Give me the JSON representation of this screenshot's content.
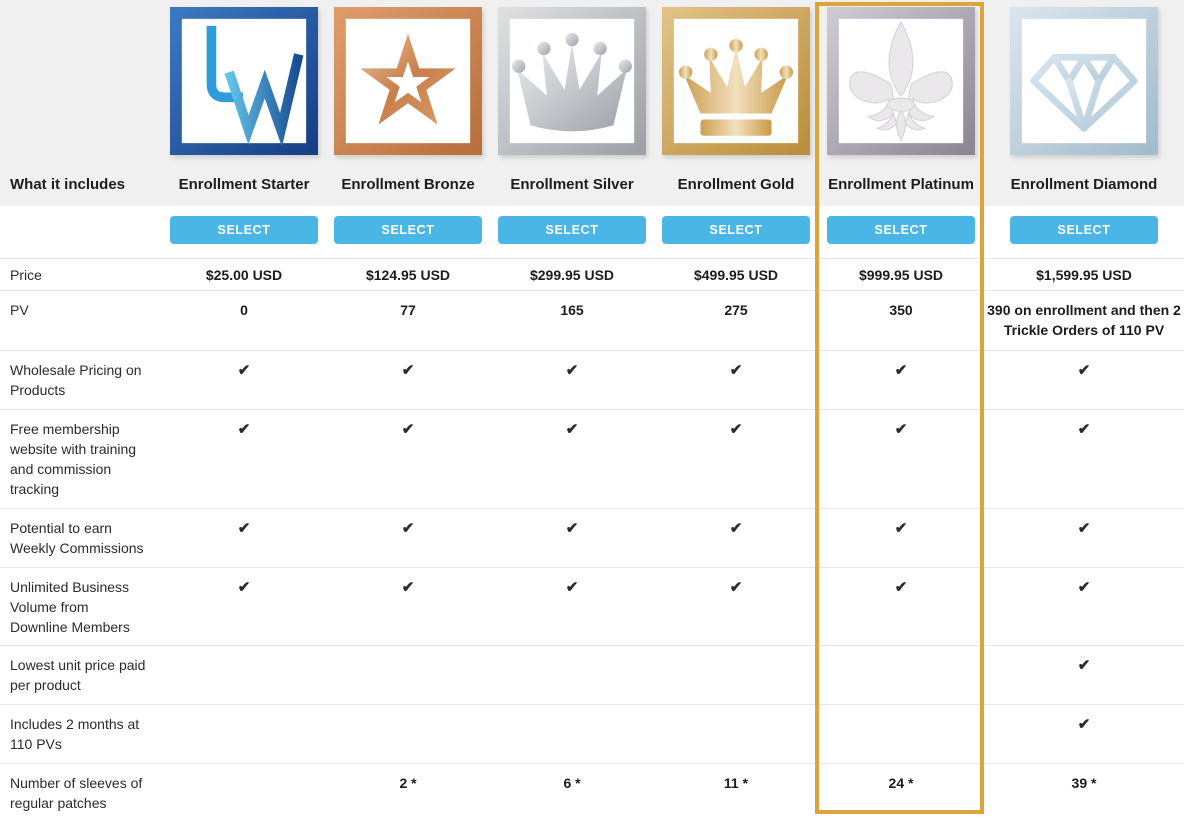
{
  "table": {
    "corner_label": "What it includes",
    "select_label": "SELECT",
    "checkmark_glyph": "✔",
    "highlighted_column": "Enrollment Platinum",
    "colors": {
      "select_button": "#4ab6e6",
      "highlight_border": "#dca43b",
      "header_band": "#f0f0f0",
      "row_divider": "#e7e7e7"
    },
    "columns": [
      {
        "name": "Enrollment Starter",
        "icon": "lw-logo-icon"
      },
      {
        "name": "Enrollment Bronze",
        "icon": "bronze-star-icon"
      },
      {
        "name": "Enrollment Silver",
        "icon": "silver-crown-icon"
      },
      {
        "name": "Enrollment Gold",
        "icon": "gold-crown-icon"
      },
      {
        "name": "Enrollment Platinum",
        "icon": "platinum-fleur-de-lis-icon"
      },
      {
        "name": "Enrollment Diamond",
        "icon": "diamond-icon"
      }
    ],
    "rows": [
      {
        "label": "Price",
        "values": [
          "$25.00 USD",
          "$124.95 USD",
          "$299.95 USD",
          "$499.95 USD",
          "$999.95 USD",
          "$1,599.95 USD"
        ]
      },
      {
        "label": "PV",
        "values": [
          "0",
          "77",
          "165",
          "275",
          "350",
          "390 on enrollment and then 2 Trickle Orders of 110 PV"
        ]
      },
      {
        "label": "Wholesale Pricing on Products",
        "values": [
          "check",
          "check",
          "check",
          "check",
          "check",
          "check"
        ]
      },
      {
        "label": "Free membership website with training and commission tracking",
        "values": [
          "check",
          "check",
          "check",
          "check",
          "check",
          "check"
        ]
      },
      {
        "label": "Potential to earn Weekly Commissions",
        "values": [
          "check",
          "check",
          "check",
          "check",
          "check",
          "check"
        ]
      },
      {
        "label": "Unlimited Business Volume from Downline Members",
        "values": [
          "check",
          "check",
          "check",
          "check",
          "check",
          "check"
        ]
      },
      {
        "label": "Lowest unit price paid per product",
        "values": [
          "",
          "",
          "",
          "",
          "",
          "check"
        ]
      },
      {
        "label": "Includes 2 months at 110 PVs",
        "values": [
          "",
          "",
          "",
          "",
          "",
          "check"
        ]
      },
      {
        "label": "Number of sleeves of regular patches",
        "values": [
          "",
          "2 *",
          "6 *",
          "11 *",
          "24 *",
          "39 *"
        ]
      }
    ]
  }
}
